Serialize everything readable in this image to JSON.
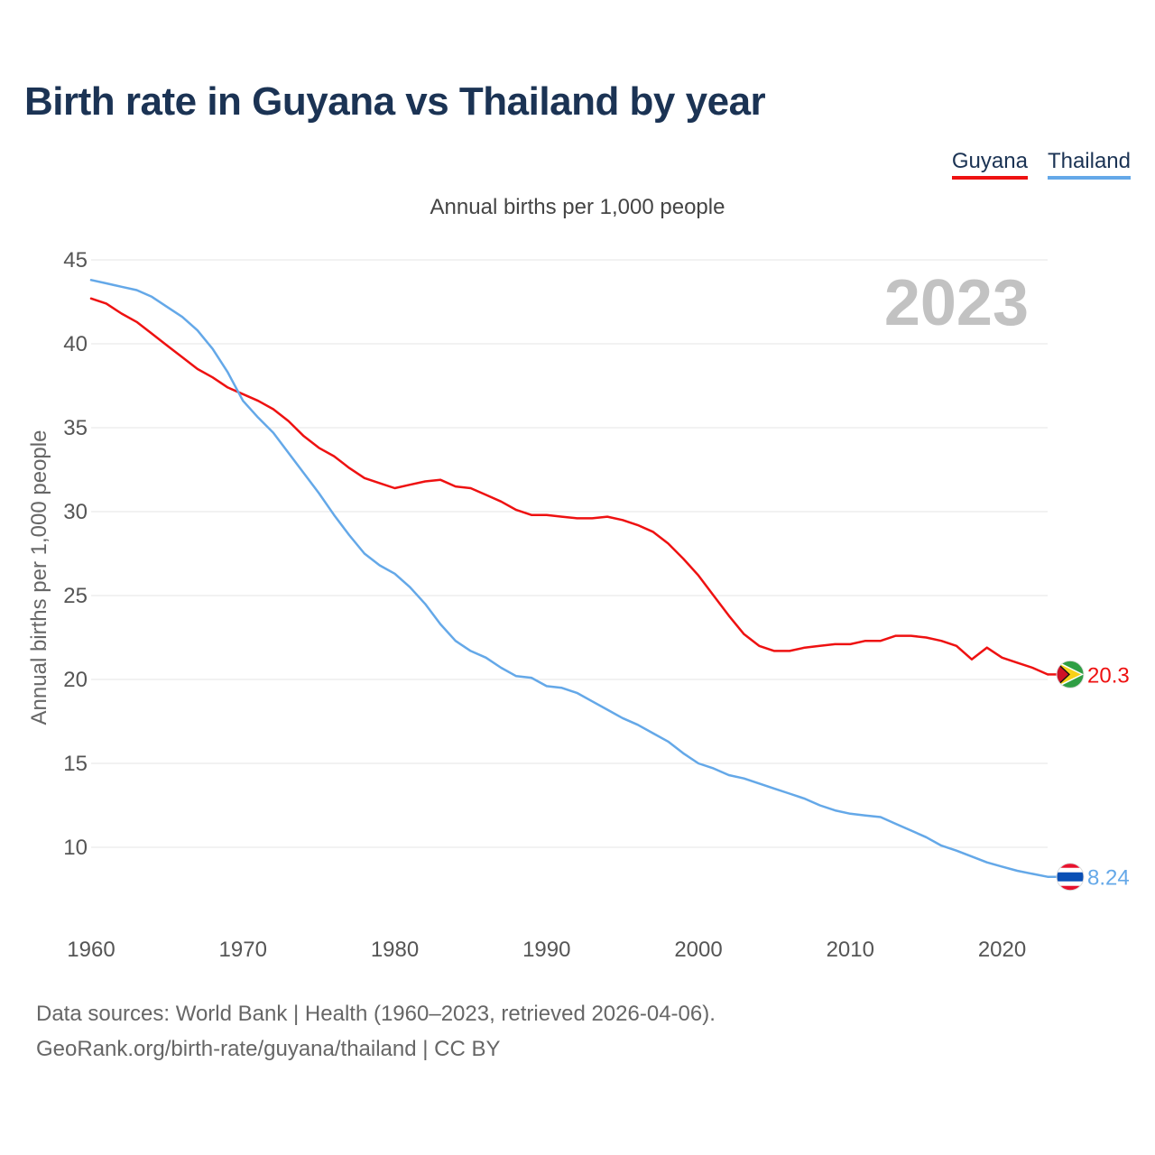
{
  "title": "Birth rate in Guyana vs Thailand by year",
  "subtitle": "Annual births per 1,000 people",
  "year_badge": "2023",
  "legend": [
    {
      "label": "Guyana",
      "color": "#ee1111"
    },
    {
      "label": "Thailand",
      "color": "#64a8e8"
    }
  ],
  "source": {
    "line1": "Data sources: World Bank | Health (1960–2023, retrieved 2026-04-06).",
    "line2": "GeoRank.org/birth-rate/guyana/thailand | CC BY"
  },
  "chart_data": {
    "type": "line",
    "title": "Birth rate in Guyana vs Thailand by year",
    "ylabel": "Annual births per 1,000 people",
    "xlabel": "",
    "xlim": [
      1960,
      2023
    ],
    "ylim": [
      5,
      45
    ],
    "x_ticks": [
      1960,
      1970,
      1980,
      1990,
      2000,
      2010,
      2020
    ],
    "y_ticks": [
      10,
      15,
      20,
      25,
      30,
      35,
      40,
      45
    ],
    "grid": true,
    "series": [
      {
        "name": "Guyana",
        "color": "#ee1111",
        "end_label": "20.3",
        "x": [
          1960,
          1961,
          1962,
          1963,
          1964,
          1965,
          1966,
          1967,
          1968,
          1969,
          1970,
          1971,
          1972,
          1973,
          1974,
          1975,
          1976,
          1977,
          1978,
          1979,
          1980,
          1981,
          1982,
          1983,
          1984,
          1985,
          1986,
          1987,
          1988,
          1989,
          1990,
          1991,
          1992,
          1993,
          1994,
          1995,
          1996,
          1997,
          1998,
          1999,
          2000,
          2001,
          2002,
          2003,
          2004,
          2005,
          2006,
          2007,
          2008,
          2009,
          2010,
          2011,
          2012,
          2013,
          2014,
          2015,
          2016,
          2017,
          2018,
          2019,
          2020,
          2021,
          2022,
          2023
        ],
        "values": [
          42.7,
          42.4,
          41.8,
          41.3,
          40.6,
          39.9,
          39.2,
          38.5,
          38.0,
          37.4,
          37.0,
          36.6,
          36.1,
          35.4,
          34.5,
          33.8,
          33.3,
          32.6,
          32.0,
          31.7,
          31.4,
          31.6,
          31.8,
          31.9,
          31.5,
          31.4,
          31.0,
          30.6,
          30.1,
          29.8,
          29.8,
          29.7,
          29.6,
          29.6,
          29.7,
          29.5,
          29.2,
          28.8,
          28.1,
          27.2,
          26.2,
          25.0,
          23.8,
          22.7,
          22.0,
          21.7,
          21.7,
          21.9,
          22.0,
          22.1,
          22.1,
          22.3,
          22.3,
          22.6,
          22.6,
          22.5,
          22.3,
          22.0,
          21.2,
          21.9,
          21.3,
          21.0,
          20.7,
          20.3
        ]
      },
      {
        "name": "Thailand",
        "color": "#64a8e8",
        "end_label": "8.24",
        "x": [
          1960,
          1961,
          1962,
          1963,
          1964,
          1965,
          1966,
          1967,
          1968,
          1969,
          1970,
          1971,
          1972,
          1973,
          1974,
          1975,
          1976,
          1977,
          1978,
          1979,
          1980,
          1981,
          1982,
          1983,
          1984,
          1985,
          1986,
          1987,
          1988,
          1989,
          1990,
          1991,
          1992,
          1993,
          1994,
          1995,
          1996,
          1997,
          1998,
          1999,
          2000,
          2001,
          2002,
          2003,
          2004,
          2005,
          2006,
          2007,
          2008,
          2009,
          2010,
          2011,
          2012,
          2013,
          2014,
          2015,
          2016,
          2017,
          2018,
          2019,
          2020,
          2021,
          2022,
          2023
        ],
        "values": [
          43.8,
          43.6,
          43.4,
          43.2,
          42.8,
          42.2,
          41.6,
          40.8,
          39.7,
          38.3,
          36.6,
          35.6,
          34.7,
          33.5,
          32.3,
          31.1,
          29.8,
          28.6,
          27.5,
          26.8,
          26.3,
          25.5,
          24.5,
          23.3,
          22.3,
          21.7,
          21.3,
          20.7,
          20.2,
          20.1,
          19.6,
          19.5,
          19.2,
          18.7,
          18.2,
          17.7,
          17.3,
          16.8,
          16.3,
          15.6,
          15.0,
          14.7,
          14.3,
          14.1,
          13.8,
          13.5,
          13.2,
          12.9,
          12.5,
          12.2,
          12.0,
          11.9,
          11.8,
          11.4,
          11.0,
          10.6,
          10.1,
          9.8,
          9.45,
          9.1,
          8.85,
          8.6,
          8.42,
          8.24
        ]
      }
    ]
  }
}
